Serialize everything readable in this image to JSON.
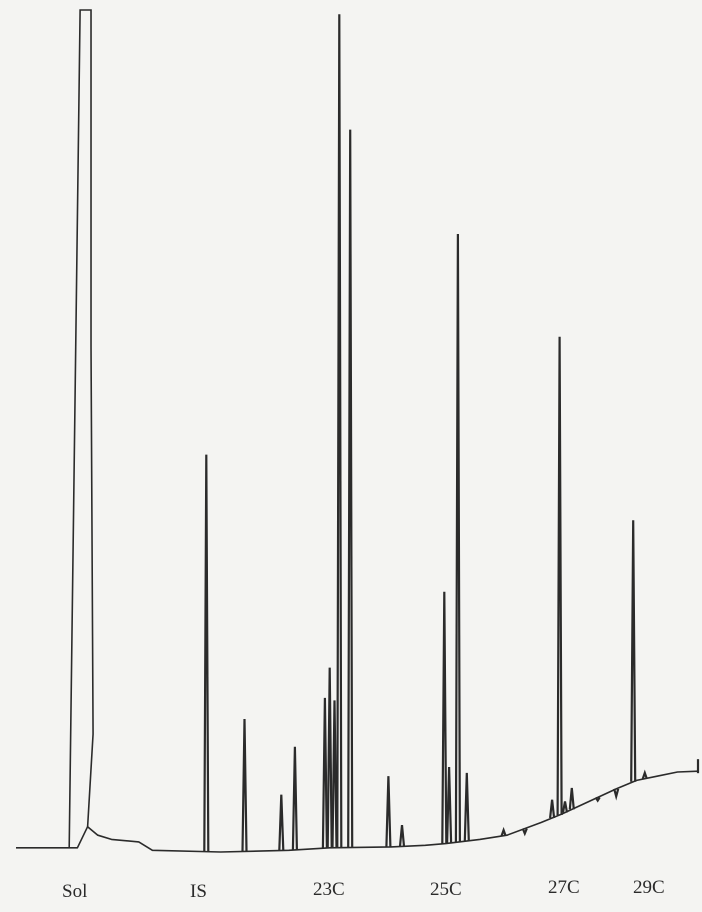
{
  "chart_data": {
    "type": "line",
    "title": "",
    "xlabel": "",
    "ylabel": "",
    "grid": false,
    "legend": "none",
    "line_color": "#2b2b2b",
    "xlim": [
      0,
      100
    ],
    "ylim": [
      0,
      100
    ],
    "baseline": [
      [
        0,
        0.5
      ],
      [
        7.4,
        0.5
      ],
      [
        9.0,
        0.5
      ],
      [
        10.5,
        3.0
      ],
      [
        12.0,
        2.0
      ],
      [
        14.0,
        1.5
      ],
      [
        18.0,
        1.2
      ],
      [
        20.0,
        0.2
      ],
      [
        30.0,
        0.0
      ],
      [
        40.0,
        0.2
      ],
      [
        46.0,
        0.5
      ],
      [
        55.0,
        0.6
      ],
      [
        60.0,
        0.8
      ],
      [
        63.0,
        1.0
      ],
      [
        68.0,
        1.5
      ],
      [
        72.0,
        2.0
      ],
      [
        77.0,
        3.5
      ],
      [
        80.0,
        4.5
      ],
      [
        84.0,
        6.0
      ],
      [
        88.0,
        7.5
      ],
      [
        91.0,
        8.5
      ],
      [
        94.0,
        9.0
      ],
      [
        97.0,
        9.5
      ],
      [
        100.0,
        9.6
      ]
    ],
    "solvent_peak": {
      "label": "Sol",
      "x": [
        9.4,
        11.0
      ],
      "y": 100
    },
    "peaks": [
      {
        "label": "IS",
        "x": 27.9,
        "y": 47.2
      },
      {
        "x": 33.5,
        "y": 15.8
      },
      {
        "x": 38.9,
        "y": 6.8
      },
      {
        "x": 40.9,
        "y": 12.5
      },
      {
        "x": 45.3,
        "y": 18.3
      },
      {
        "x": 46.0,
        "y": 21.9
      },
      {
        "x": 46.7,
        "y": 18.0
      },
      {
        "label": "23C",
        "x": 47.4,
        "y": 99.5
      },
      {
        "x": 49.0,
        "y": 85.8
      },
      {
        "x": 54.6,
        "y": 9.0
      },
      {
        "x": 56.6,
        "y": 3.2
      },
      {
        "x": 62.8,
        "y": 30.9
      },
      {
        "x": 63.5,
        "y": 10.1
      },
      {
        "label": "25C",
        "x": 64.8,
        "y": 73.4
      },
      {
        "x": 66.1,
        "y": 9.4
      },
      {
        "x": 71.5,
        "y": 2.6
      },
      {
        "x": 74.6,
        "y": 2.2
      },
      {
        "x": 78.6,
        "y": 6.2
      },
      {
        "label": "27C",
        "x": 79.7,
        "y": 61.2
      },
      {
        "x": 80.5,
        "y": 6.0
      },
      {
        "x": 81.5,
        "y": 7.6
      },
      {
        "x": 85.3,
        "y": 6.1
      },
      {
        "x": 88.0,
        "y": 6.6
      },
      {
        "label": "29C",
        "x": 90.5,
        "y": 39.4
      },
      {
        "x": 92.2,
        "y": 9.4
      }
    ],
    "tick_labels": [
      "Sol",
      "IS",
      "23C",
      "25C",
      "27C",
      "29C"
    ]
  }
}
